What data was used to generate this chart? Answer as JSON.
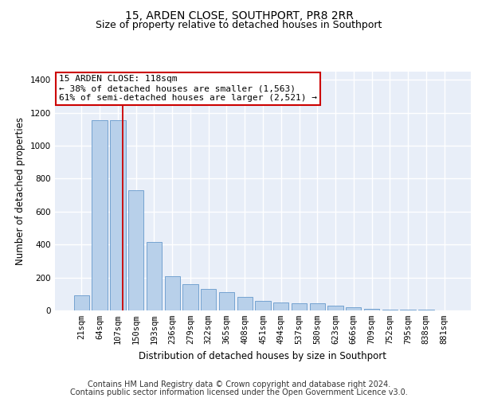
{
  "title": "15, ARDEN CLOSE, SOUTHPORT, PR8 2RR",
  "subtitle": "Size of property relative to detached houses in Southport",
  "xlabel": "Distribution of detached houses by size in Southport",
  "ylabel": "Number of detached properties",
  "footer_line1": "Contains HM Land Registry data © Crown copyright and database right 2024.",
  "footer_line2": "Contains public sector information licensed under the Open Government Licence v3.0.",
  "bar_labels": [
    "21sqm",
    "64sqm",
    "107sqm",
    "150sqm",
    "193sqm",
    "236sqm",
    "279sqm",
    "322sqm",
    "365sqm",
    "408sqm",
    "451sqm",
    "494sqm",
    "537sqm",
    "580sqm",
    "623sqm",
    "666sqm",
    "709sqm",
    "752sqm",
    "795sqm",
    "838sqm",
    "881sqm"
  ],
  "bar_values": [
    90,
    1155,
    1155,
    730,
    415,
    210,
    160,
    130,
    110,
    80,
    60,
    50,
    45,
    45,
    30,
    20,
    10,
    5,
    5,
    3,
    2
  ],
  "bar_color": "#b8d0ea",
  "bar_edge_color": "#6699cc",
  "annotation_text": "15 ARDEN CLOSE: 118sqm\n← 38% of detached houses are smaller (1,563)\n61% of semi-detached houses are larger (2,521) →",
  "annotation_box_color": "#ffffff",
  "annotation_box_edge_color": "#cc0000",
  "property_line_color": "#cc0000",
  "line_x_index": 2.3,
  "ylim": [
    0,
    1450
  ],
  "yticks": [
    0,
    200,
    400,
    600,
    800,
    1000,
    1200,
    1400
  ],
  "background_color": "#e8eef8",
  "grid_color": "#ffffff",
  "title_fontsize": 10,
  "subtitle_fontsize": 9,
  "axis_label_fontsize": 8.5,
  "tick_fontsize": 7.5,
  "annotation_fontsize": 8,
  "footer_fontsize": 7
}
